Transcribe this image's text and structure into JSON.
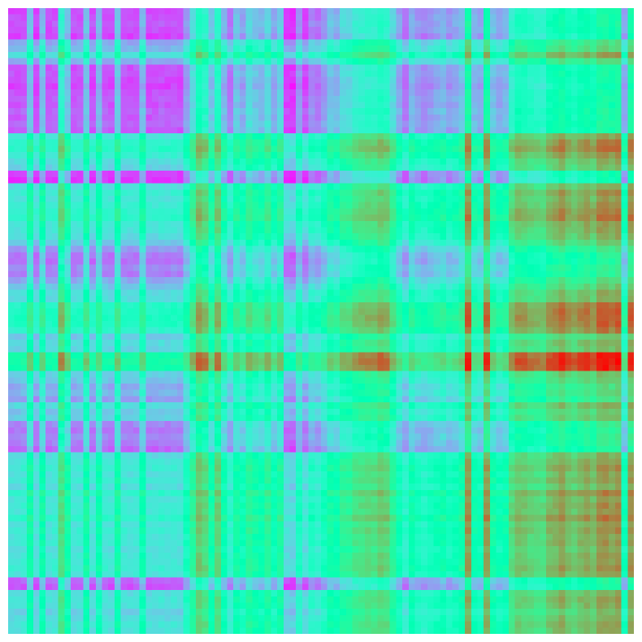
{
  "chart_data": {
    "type": "heatmap",
    "title": "",
    "xlabel": "",
    "ylabel": "",
    "rows": 100,
    "cols": 100,
    "colormap": "rainbow",
    "value_range": [
      0,
      1
    ],
    "colorbar": false,
    "axes_visible": false,
    "grid": false,
    "description_of_structure": "",
    "col_profile": [
      0.1,
      0.1,
      0.12,
      0.45,
      0.08,
      0.42,
      0.1,
      0.12,
      0.7,
      0.45,
      0.1,
      0.12,
      0.45,
      0.1,
      0.4,
      0.12,
      0.1,
      0.45,
      0.12,
      0.1,
      0.12,
      0.4,
      0.1,
      0.1,
      0.12,
      0.1,
      0.12,
      0.1,
      0.3,
      0.55,
      0.82,
      0.72,
      0.45,
      0.75,
      0.4,
      0.2,
      0.45,
      0.35,
      0.55,
      0.45,
      0.4,
      0.55,
      0.35,
      0.5,
      0.05,
      0.02,
      0.28,
      0.08,
      0.25,
      0.2,
      0.3,
      0.45,
      0.4,
      0.55,
      0.55,
      0.65,
      0.68,
      0.72,
      0.7,
      0.78,
      0.75,
      0.55,
      0.35,
      0.2,
      0.4,
      0.3,
      0.25,
      0.3,
      0.35,
      0.4,
      0.3,
      0.35,
      0.45,
      0.98,
      0.4,
      0.35,
      0.95,
      0.45,
      0.35,
      0.4,
      0.7,
      0.82,
      0.8,
      0.75,
      0.72,
      0.7,
      0.85,
      0.88,
      0.95,
      0.85,
      0.8,
      0.88,
      0.92,
      0.85,
      0.98,
      1.0,
      0.95,
      1.0,
      0.35,
      0.98
    ],
    "row_profile": [
      0.08,
      0.1,
      0.12,
      0.1,
      0.05,
      0.35,
      0.4,
      0.6,
      0.35,
      0.1,
      0.12,
      0.08,
      0.05,
      0.1,
      0.12,
      0.1,
      0.15,
      0.12,
      0.15,
      0.12,
      0.6,
      0.7,
      0.75,
      0.65,
      0.55,
      0.5,
      0.05,
      0.02,
      0.55,
      0.65,
      0.6,
      0.65,
      0.7,
      0.72,
      0.62,
      0.6,
      0.55,
      0.45,
      0.3,
      0.2,
      0.18,
      0.25,
      0.22,
      0.35,
      0.45,
      0.55,
      0.55,
      0.75,
      0.78,
      0.8,
      0.78,
      0.7,
      0.45,
      0.55,
      0.52,
      0.95,
      0.98,
      0.95,
      0.5,
      0.45,
      0.35,
      0.4,
      0.3,
      0.55,
      0.45,
      0.5,
      0.25,
      0.2,
      0.25,
      0.22,
      0.15,
      0.55,
      0.6,
      0.65,
      0.58,
      0.62,
      0.55,
      0.7,
      0.6,
      0.65,
      0.62,
      0.72,
      0.6,
      0.65,
      0.6,
      0.62,
      0.55,
      0.6,
      0.62,
      0.65,
      0.6,
      0.15,
      0.1,
      0.55,
      0.6,
      0.58,
      0.5,
      0.55,
      0.6,
      0.58
    ]
  }
}
